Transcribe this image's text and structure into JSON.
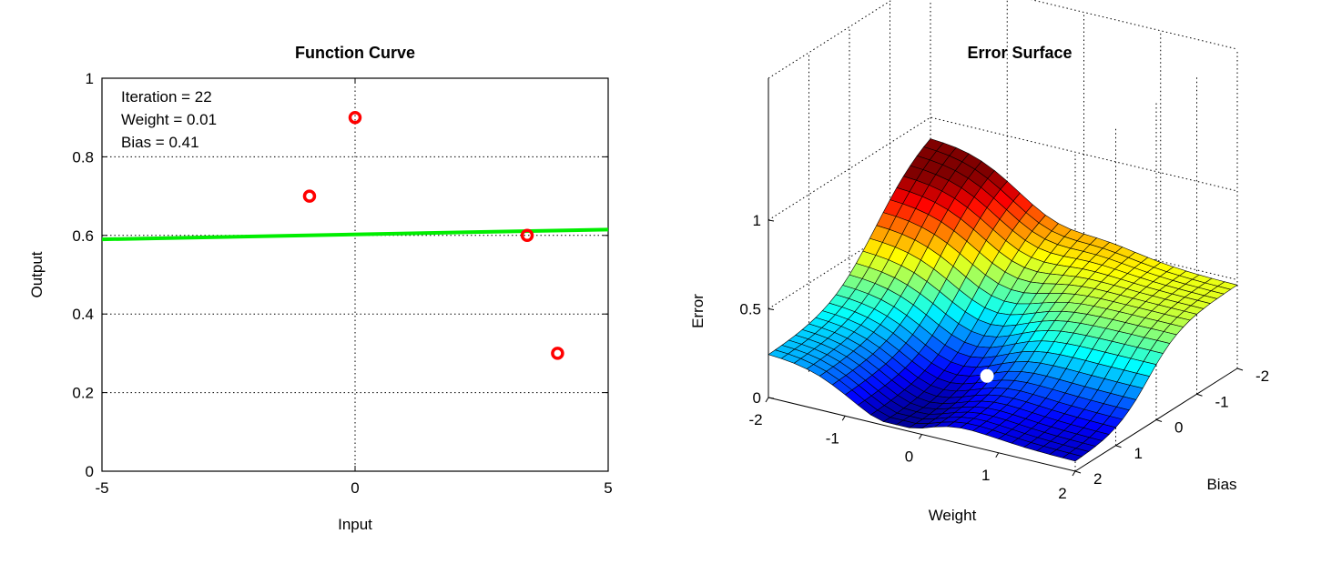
{
  "chart_data": [
    {
      "type": "line",
      "title": "Function Curve",
      "xlabel": "Input",
      "ylabel": "Output",
      "xlim": [
        -5,
        5
      ],
      "ylim": [
        0,
        1
      ],
      "xticks": [
        -5,
        0,
        5
      ],
      "yticks": [
        0,
        0.2,
        0.4,
        0.6,
        0.8,
        1
      ],
      "xtick_labels": [
        "-5",
        "0",
        "5"
      ],
      "ytick_labels": [
        "0",
        "0.2",
        "0.4",
        "0.6",
        "0.8",
        "1"
      ],
      "grid": true,
      "annotation": [
        "Iteration = 22",
        "Weight = 0.01",
        "Bias = 0.41"
      ],
      "points": {
        "x": [
          -0.9,
          0.0,
          3.4,
          4.0
        ],
        "y": [
          0.7,
          0.9,
          0.6,
          0.3
        ],
        "marker": "o",
        "color": "#ff0000"
      },
      "line": {
        "x": [
          -5,
          5
        ],
        "y": [
          0.59,
          0.615
        ],
        "color": "#00ee00"
      }
    },
    {
      "type": "surface",
      "title": "Error Surface",
      "xlabel": "Weight",
      "ylabel": "Bias",
      "zlabel": "Error",
      "xlim": [
        -2,
        2
      ],
      "ylim": [
        -2,
        2
      ],
      "zlim": [
        0,
        1
      ],
      "xticks": [
        -2,
        -1,
        0,
        1,
        2
      ],
      "yticks": [
        -2,
        -1,
        0,
        1,
        2
      ],
      "zticks": [
        0,
        0.5,
        1
      ],
      "xtick_labels": [
        "-2",
        "-1",
        "0",
        "1",
        "2"
      ],
      "ytick_labels": [
        "-2",
        "-1",
        "0",
        "1",
        "2"
      ],
      "ztick_labels": [
        "0",
        "0.5",
        "1"
      ],
      "grid": true,
      "colormap": "jet",
      "current_point": {
        "weight": 0.01,
        "bias": 0.41,
        "error": 0.1,
        "color": "#ffffff"
      }
    }
  ]
}
